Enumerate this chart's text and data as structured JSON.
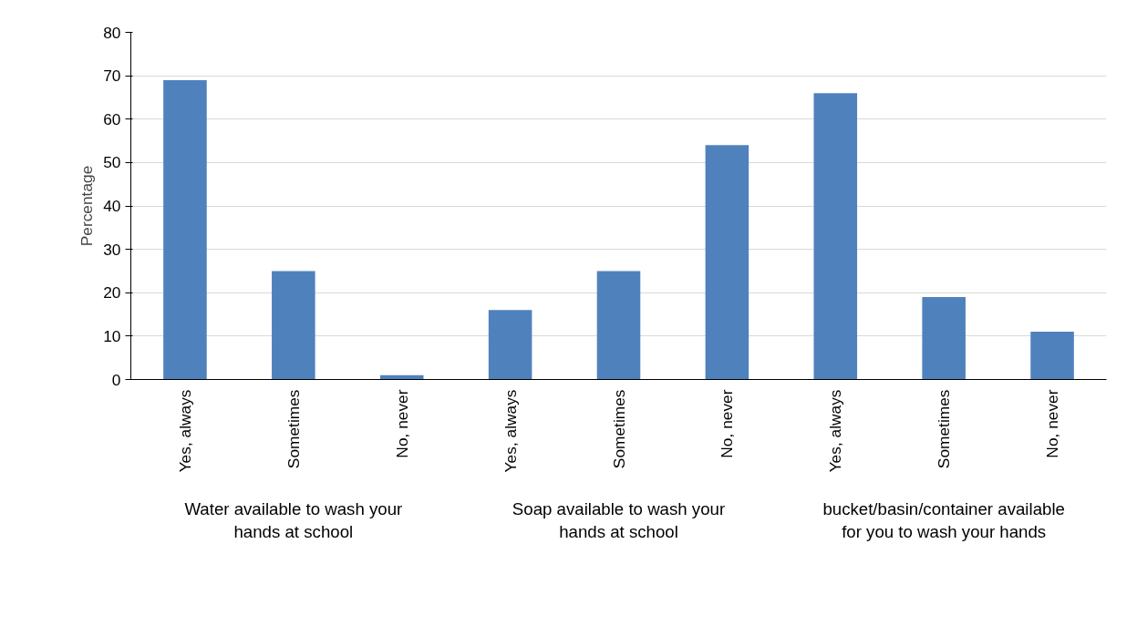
{
  "chart_data": {
    "type": "bar",
    "ylabel": "Percentage",
    "categories": [
      "Yes, always",
      "Sometimes",
      "No, never",
      "Yes, always",
      "Sometimes",
      "No, never",
      "Yes, always",
      "Sometimes",
      "No, never"
    ],
    "values": [
      69,
      25,
      1,
      16,
      25,
      54,
      66,
      19,
      11
    ],
    "color": "#4f81bd",
    "ylim": [
      0,
      80
    ],
    "yticks": [
      0,
      10,
      20,
      30,
      40,
      50,
      60,
      70,
      80
    ],
    "grid": "y",
    "annotations": [
      "Water available to wash your hands at school",
      "Soap available to wash your hands at school",
      "bucket/basin/container available for you to wash your hands"
    ]
  }
}
